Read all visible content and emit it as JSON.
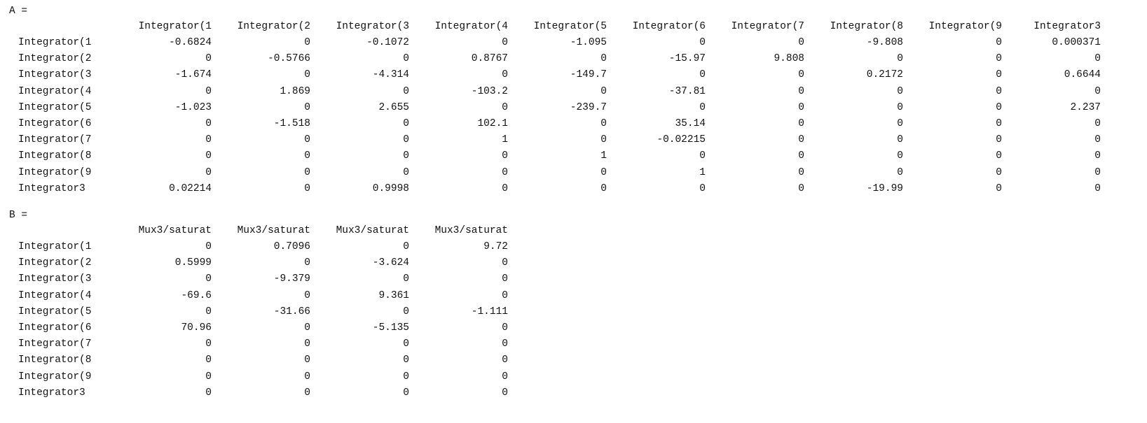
{
  "console": {
    "matrices": [
      {
        "label": "A =",
        "columns": [
          "Integrator(1",
          "Integrator(2",
          "Integrator(3",
          "Integrator(4",
          "Integrator(5",
          "Integrator(6",
          "Integrator(7",
          "Integrator(8",
          "Integrator(9",
          "Integrator3"
        ],
        "rows": [
          {
            "label": "Integrator(1",
            "values": [
              "-0.6824",
              "0",
              "-0.1072",
              "0",
              "-1.095",
              "0",
              "0",
              "-9.808",
              "0",
              "0.000371"
            ]
          },
          {
            "label": "Integrator(2",
            "values": [
              "0",
              "-0.5766",
              "0",
              "0.8767",
              "0",
              "-15.97",
              "9.808",
              "0",
              "0",
              "0"
            ]
          },
          {
            "label": "Integrator(3",
            "values": [
              "-1.674",
              "0",
              "-4.314",
              "0",
              "-149.7",
              "0",
              "0",
              "0.2172",
              "0",
              "0.6644"
            ]
          },
          {
            "label": "Integrator(4",
            "values": [
              "0",
              "1.869",
              "0",
              "-103.2",
              "0",
              "-37.81",
              "0",
              "0",
              "0",
              "0"
            ]
          },
          {
            "label": "Integrator(5",
            "values": [
              "-1.023",
              "0",
              "2.655",
              "0",
              "-239.7",
              "0",
              "0",
              "0",
              "0",
              "2.237"
            ]
          },
          {
            "label": "Integrator(6",
            "values": [
              "0",
              "-1.518",
              "0",
              "102.1",
              "0",
              "35.14",
              "0",
              "0",
              "0",
              "0"
            ]
          },
          {
            "label": "Integrator(7",
            "values": [
              "0",
              "0",
              "0",
              "1",
              "0",
              "-0.02215",
              "0",
              "0",
              "0",
              "0"
            ]
          },
          {
            "label": "Integrator(8",
            "values": [
              "0",
              "0",
              "0",
              "0",
              "1",
              "0",
              "0",
              "0",
              "0",
              "0"
            ]
          },
          {
            "label": "Integrator(9",
            "values": [
              "0",
              "0",
              "0",
              "0",
              "0",
              "1",
              "0",
              "0",
              "0",
              "0"
            ]
          },
          {
            "label": "Integrator3",
            "values": [
              "0.02214",
              "0",
              "0.9998",
              "0",
              "0",
              "0",
              "0",
              "-19.99",
              "0",
              "0"
            ]
          }
        ]
      },
      {
        "label": "B =",
        "columns": [
          "Mux3/saturat",
          "Mux3/saturat",
          "Mux3/saturat",
          "Mux3/saturat"
        ],
        "rows": [
          {
            "label": "Integrator(1",
            "values": [
              "0",
              "0.7096",
              "0",
              "9.72"
            ]
          },
          {
            "label": "Integrator(2",
            "values": [
              "0.5999",
              "0",
              "-3.624",
              "0"
            ]
          },
          {
            "label": "Integrator(3",
            "values": [
              "0",
              "-9.379",
              "0",
              "0"
            ]
          },
          {
            "label": "Integrator(4",
            "values": [
              "-69.6",
              "0",
              "9.361",
              "0"
            ]
          },
          {
            "label": "Integrator(5",
            "values": [
              "0",
              "-31.66",
              "0",
              "-1.111"
            ]
          },
          {
            "label": "Integrator(6",
            "values": [
              "70.96",
              "0",
              "-5.135",
              "0"
            ]
          },
          {
            "label": "Integrator(7",
            "values": [
              "0",
              "0",
              "0",
              "0"
            ]
          },
          {
            "label": "Integrator(8",
            "values": [
              "0",
              "0",
              "0",
              "0"
            ]
          },
          {
            "label": "Integrator(9",
            "values": [
              "0",
              "0",
              "0",
              "0"
            ]
          },
          {
            "label": "Integrator3",
            "values": [
              "0",
              "0",
              "0",
              "0"
            ]
          }
        ]
      }
    ]
  }
}
